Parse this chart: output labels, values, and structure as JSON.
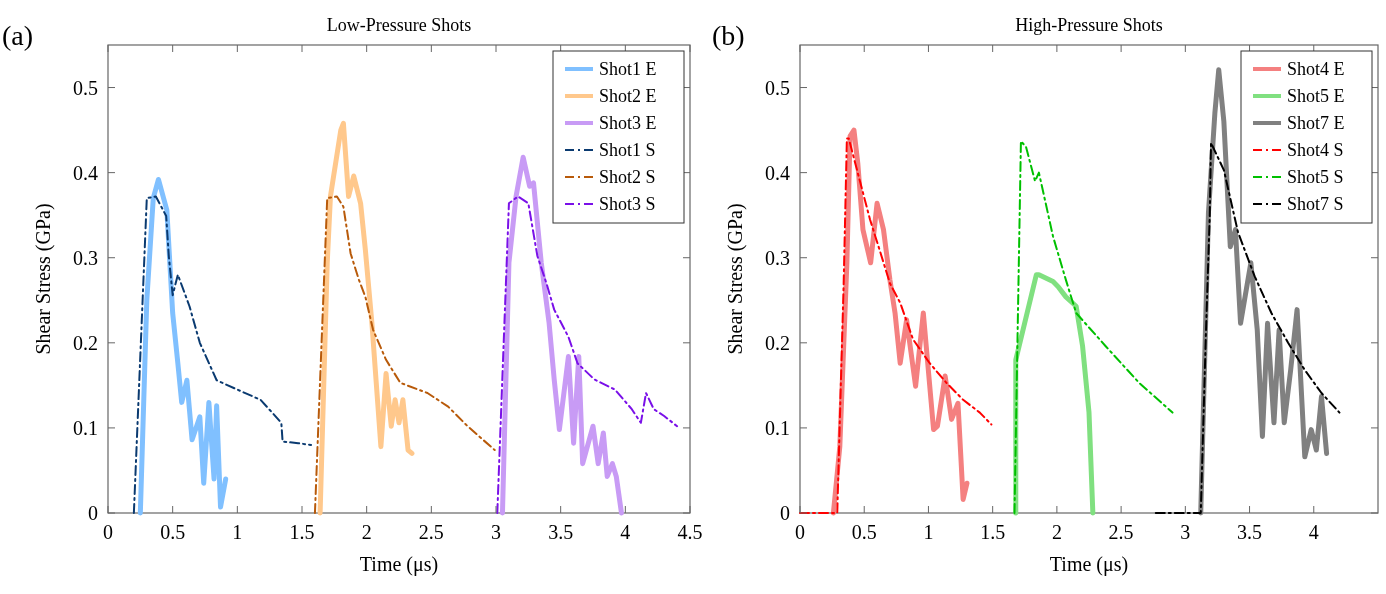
{
  "chart_data": [
    {
      "type": "line",
      "title": "Low-Pressure Shots",
      "xlabel": "Time (μs)",
      "ylabel": "Shear Stress (GPa)",
      "annotations": [
        "(a)"
      ],
      "xlim": [
        0,
        4.5
      ],
      "xticks": [
        0,
        0.5,
        1,
        1.5,
        2,
        2.5,
        3,
        3.5,
        4,
        4.5
      ],
      "ylim": [
        0,
        0.55
      ],
      "yticks": [
        0,
        0.1,
        0.2,
        0.3,
        0.4,
        0.5
      ],
      "grid": false,
      "legend": "top right",
      "marker": "none",
      "series": [
        {
          "name": "Shot1 E",
          "color": "#80c0ff",
          "line_style": "solid",
          "x": [
            0.25,
            0.3,
            0.35,
            0.39,
            0.455,
            0.5,
            0.54,
            0.57,
            0.61,
            0.65,
            0.71,
            0.74,
            0.78,
            0.82,
            0.84,
            0.87,
            0.91
          ],
          "values": [
            0,
            0.25,
            0.37,
            0.392,
            0.356,
            0.235,
            0.176,
            0.13,
            0.156,
            0.086,
            0.113,
            0.035,
            0.13,
            0.04,
            0.126,
            0.007,
            0.04
          ]
        },
        {
          "name": "Shot2 E",
          "color": "#ffc88c",
          "line_style": "solid",
          "x": [
            1.64,
            1.695,
            1.72,
            1.8,
            1.82,
            1.86,
            1.9,
            1.953,
            1.99,
            2.04,
            2.11,
            2.15,
            2.19,
            2.22,
            2.25,
            2.28,
            2.32,
            2.35
          ],
          "values": [
            0,
            0.294,
            0.372,
            0.45,
            0.458,
            0.372,
            0.396,
            0.364,
            0.309,
            0.224,
            0.078,
            0.164,
            0.102,
            0.133,
            0.106,
            0.133,
            0.074,
            0.07
          ]
        },
        {
          "name": "Shot3 E",
          "color": "#c89bf5",
          "line_style": "solid",
          "x": [
            3.05,
            3.1,
            3.155,
            3.21,
            3.26,
            3.29,
            3.35,
            3.41,
            3.45,
            3.49,
            3.56,
            3.6,
            3.64,
            3.67,
            3.75,
            3.79,
            3.83,
            3.86,
            3.9,
            3.93,
            3.97
          ],
          "values": [
            0,
            0.294,
            0.372,
            0.418,
            0.384,
            0.388,
            0.294,
            0.224,
            0.157,
            0.098,
            0.184,
            0.082,
            0.184,
            0.058,
            0.102,
            0.058,
            0.094,
            0.043,
            0.058,
            0.043,
            0
          ]
        },
        {
          "name": "Shot1 S",
          "color": "#0a3a70",
          "line_style": "dashed",
          "x": [
            0.2,
            0.3,
            0.37,
            0.45,
            0.47,
            0.5,
            0.54,
            0.63,
            0.71,
            0.84,
            1.0,
            1.18,
            1.34,
            1.35,
            1.47,
            1.57
          ],
          "values": [
            0,
            0.37,
            0.372,
            0.349,
            0.302,
            0.256,
            0.28,
            0.243,
            0.2,
            0.156,
            0.145,
            0.133,
            0.106,
            0.084,
            0.082,
            0.08
          ]
        },
        {
          "name": "Shot2 S",
          "color": "#b85a0a",
          "line_style": "dashed",
          "x": [
            1.6,
            1.695,
            1.77,
            1.82,
            1.876,
            1.94,
            1.99,
            2.05,
            2.15,
            2.26,
            2.47,
            2.63,
            2.78,
            2.99
          ],
          "values": [
            0,
            0.37,
            0.372,
            0.36,
            0.305,
            0.274,
            0.254,
            0.215,
            0.18,
            0.153,
            0.141,
            0.125,
            0.102,
            0.074
          ]
        },
        {
          "name": "Shot3 S",
          "color": "#7a10e8",
          "line_style": "dashed",
          "x": [
            3.01,
            3.1,
            3.17,
            3.25,
            3.32,
            3.39,
            3.45,
            3.56,
            3.63,
            3.76,
            3.92,
            4.05,
            4.12,
            4.16,
            4.22,
            4.3,
            4.4
          ],
          "values": [
            0,
            0.364,
            0.372,
            0.364,
            0.302,
            0.27,
            0.239,
            0.207,
            0.176,
            0.157,
            0.145,
            0.122,
            0.106,
            0.141,
            0.122,
            0.114,
            0.102
          ]
        }
      ]
    },
    {
      "type": "line",
      "title": "High-Pressure Shots",
      "xlabel": "Time (μs)",
      "ylabel": "Shear Stress (GPa)",
      "annotations": [
        "(b)"
      ],
      "xlim": [
        0,
        4.5
      ],
      "xticks": [
        0,
        0.5,
        1,
        1.5,
        2,
        2.5,
        3,
        3.5,
        4
      ],
      "ylim": [
        0,
        0.55
      ],
      "yticks": [
        0,
        0.1,
        0.2,
        0.3,
        0.4,
        0.5
      ],
      "grid": false,
      "legend": "top right",
      "marker": "none",
      "series": [
        {
          "name": "Shot4 E",
          "color": "#f48080",
          "line_style": "solid",
          "x": [
            0.26,
            0.31,
            0.365,
            0.39,
            0.42,
            0.45,
            0.49,
            0.55,
            0.6,
            0.65,
            0.7,
            0.74,
            0.78,
            0.83,
            0.9,
            0.96,
            1.04,
            1.07,
            1.13,
            1.18,
            1.23,
            1.27,
            1.3
          ],
          "values": [
            0,
            0.078,
            0.294,
            0.443,
            0.45,
            0.411,
            0.333,
            0.294,
            0.364,
            0.333,
            0.274,
            0.235,
            0.176,
            0.227,
            0.149,
            0.235,
            0.098,
            0.102,
            0.161,
            0.11,
            0.129,
            0.016,
            0.035
          ]
        },
        {
          "name": "Shot5 E",
          "color": "#80e080",
          "line_style": "solid",
          "x": [
            1.68,
            1.68,
            1.84,
            1.86,
            1.97,
            2.01,
            2.07,
            2.15,
            2.2,
            2.25,
            2.28
          ],
          "values": [
            0,
            0.18,
            0.28,
            0.28,
            0.272,
            0.266,
            0.254,
            0.243,
            0.196,
            0.118,
            0
          ]
        },
        {
          "name": "Shot7 E",
          "color": "#808080",
          "line_style": "solid",
          "x": [
            3.12,
            3.18,
            3.23,
            3.26,
            3.3,
            3.35,
            3.39,
            3.43,
            3.51,
            3.56,
            3.6,
            3.64,
            3.69,
            3.73,
            3.77,
            3.82,
            3.87,
            3.93,
            3.98,
            4.02,
            4.06,
            4.1
          ],
          "values": [
            0,
            0.353,
            0.47,
            0.521,
            0.46,
            0.313,
            0.333,
            0.223,
            0.294,
            0.215,
            0.09,
            0.223,
            0.106,
            0.215,
            0.106,
            0.168,
            0.239,
            0.066,
            0.098,
            0.074,
            0.137,
            0.07
          ]
        },
        {
          "name": "Shot4 S",
          "color": "#ff0000",
          "line_style": "dashed",
          "x": [
            0,
            0.29,
            0.34,
            0.365,
            0.38,
            0.47,
            0.545,
            0.62,
            0.7,
            0.78,
            0.88,
            1.01,
            1.14,
            1.27,
            1.4,
            1.49
          ],
          "values": [
            0,
            0,
            0.27,
            0.44,
            0.44,
            0.388,
            0.345,
            0.309,
            0.27,
            0.247,
            0.204,
            0.176,
            0.153,
            0.133,
            0.118,
            0.104
          ]
        },
        {
          "name": "Shot5 S",
          "color": "#00c000",
          "line_style": "dashed",
          "x": [
            1.67,
            1.72,
            1.76,
            1.83,
            1.86,
            1.97,
            2.07,
            2.15,
            2.38,
            2.64,
            2.9
          ],
          "values": [
            0,
            0.437,
            0.43,
            0.39,
            0.4,
            0.325,
            0.274,
            0.235,
            0.196,
            0.153,
            0.118
          ]
        },
        {
          "name": "Shot7 S",
          "color": "#000000",
          "line_style": "dashed",
          "x": [
            2.77,
            3.12,
            3.16,
            3.19,
            3.2,
            3.3,
            3.41,
            3.54,
            3.67,
            3.8,
            3.93,
            4.06,
            4.2
          ],
          "values": [
            0,
            0,
            0.21,
            0.349,
            0.435,
            0.403,
            0.33,
            0.278,
            0.235,
            0.2,
            0.168,
            0.141,
            0.118
          ]
        }
      ]
    }
  ]
}
